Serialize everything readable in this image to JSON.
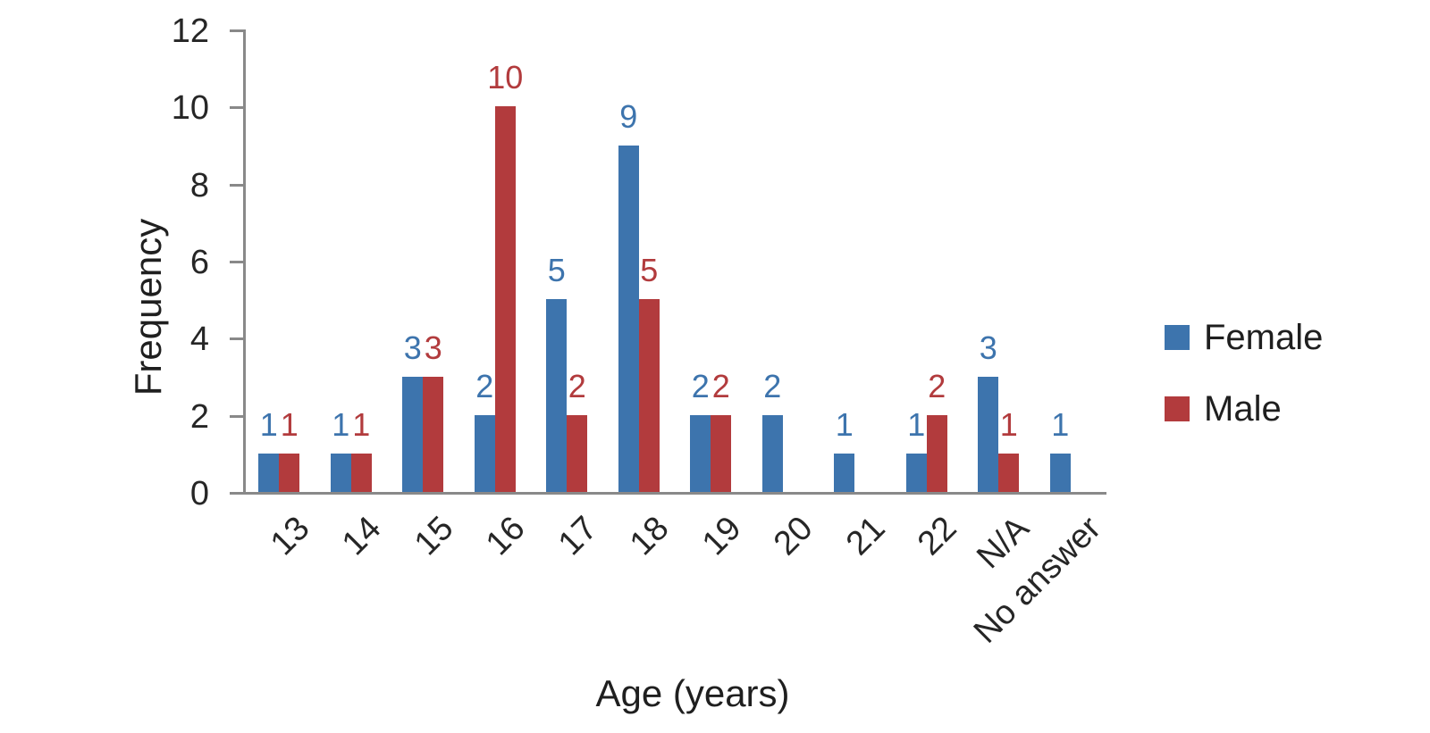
{
  "chart_data": {
    "type": "bar",
    "title": "",
    "xlabel": "Age (years)",
    "ylabel": "Frequency",
    "categories": [
      "13",
      "14",
      "15",
      "16",
      "17",
      "18",
      "19",
      "20",
      "21",
      "22",
      "N/A",
      "No answer"
    ],
    "series": [
      {
        "name": "Female",
        "color": "#3D74AD",
        "values": [
          1,
          1,
          3,
          2,
          5,
          9,
          2,
          2,
          1,
          1,
          3,
          1
        ]
      },
      {
        "name": "Male",
        "color": "#B23B3D",
        "values": [
          1,
          1,
          3,
          10,
          2,
          5,
          2,
          0,
          0,
          2,
          1,
          0
        ]
      }
    ],
    "ylim": [
      0,
      12
    ],
    "yticks": [
      0,
      2,
      4,
      6,
      8,
      10,
      12
    ],
    "grid": false,
    "legend_position": "right",
    "data_labels": true,
    "axis_color": "#898989",
    "text_color": "#262626"
  }
}
